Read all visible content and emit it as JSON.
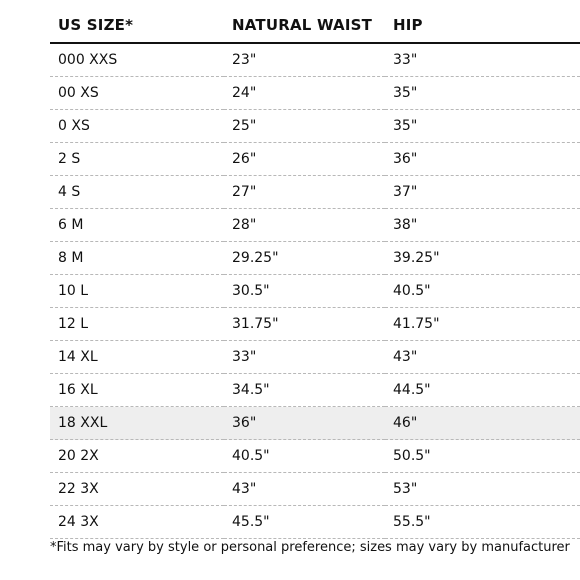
{
  "table": {
    "headers": [
      "US SIZE*",
      "NATURAL WAIST",
      "HIP"
    ],
    "rows": [
      {
        "size": "000 XXS",
        "waist": "23\"",
        "hip": "33\""
      },
      {
        "size": "00 XS",
        "waist": "24\"",
        "hip": "35\""
      },
      {
        "size": "0 XS",
        "waist": "25\"",
        "hip": "35\""
      },
      {
        "size": "2 S",
        "waist": "26\"",
        "hip": "36\""
      },
      {
        "size": "4 S",
        "waist": "27\"",
        "hip": "37\""
      },
      {
        "size": "6 M",
        "waist": "28\"",
        "hip": "38\""
      },
      {
        "size": "8 M",
        "waist": "29.25\"",
        "hip": "39.25\""
      },
      {
        "size": "10 L",
        "waist": "30.5\"",
        "hip": "40.5\""
      },
      {
        "size": "12 L",
        "waist": "31.75\"",
        "hip": "41.75\""
      },
      {
        "size": "14 XL",
        "waist": "33\"",
        "hip": "43\""
      },
      {
        "size": "16 XL",
        "waist": "34.5\"",
        "hip": "44.5\""
      },
      {
        "size": "18 XXL",
        "waist": "36\"",
        "hip": "46\""
      },
      {
        "size": "20 2X",
        "waist": "40.5\"",
        "hip": "50.5\""
      },
      {
        "size": "22 3X",
        "waist": "43\"",
        "hip": "53\""
      },
      {
        "size": "24 3X",
        "waist": "45.5\"",
        "hip": "55.5\""
      }
    ],
    "highlighted_row": "18 XXL",
    "highlight_color": "#eeeeee"
  },
  "footnote": "*Fits may vary by style or personal preference; sizes may vary by manufacturer"
}
